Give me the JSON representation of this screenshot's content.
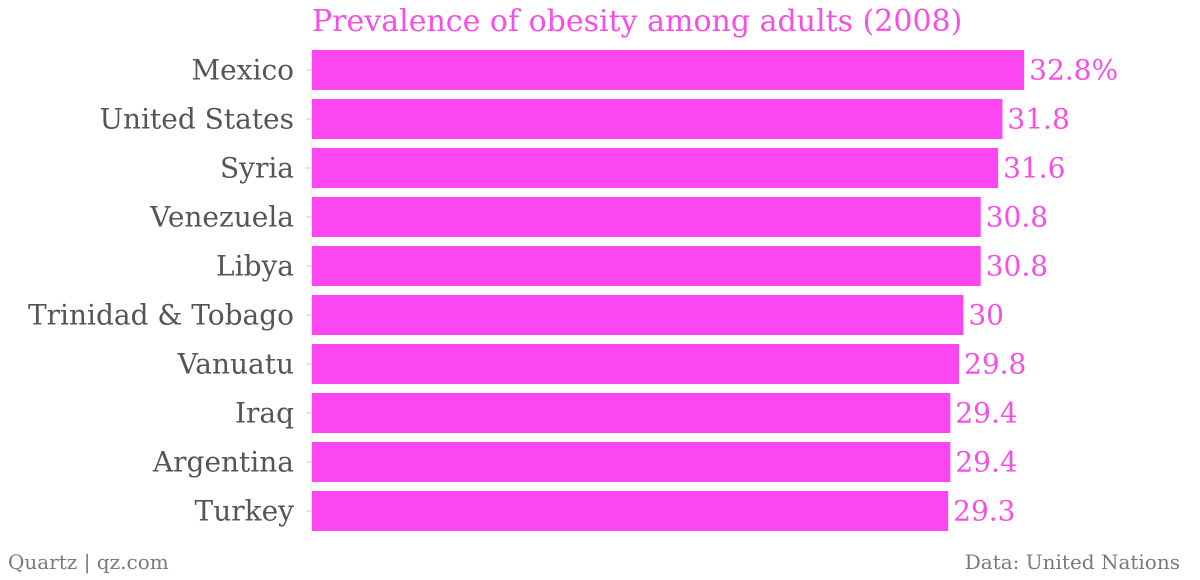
{
  "chart_data": {
    "type": "bar",
    "orientation": "horizontal",
    "title": "Prevalence of obesity among adults (2008)",
    "categories": [
      "Mexico",
      "United States",
      "Syria",
      "Venezuela",
      "Libya",
      "Trinidad & Tobago",
      "Vanuatu",
      "Iraq",
      "Argentina",
      "Turkey"
    ],
    "values": [
      32.8,
      31.8,
      31.6,
      30.8,
      30.8,
      30,
      29.8,
      29.4,
      29.4,
      29.3
    ],
    "value_labels": [
      "32.8%",
      "31.8",
      "31.6",
      "30.8",
      "30.8",
      "30",
      "29.8",
      "29.4",
      "29.4",
      "29.3"
    ],
    "xlim": [
      0,
      33.3
    ],
    "grid": false,
    "legend": "none",
    "colors": {
      "bar": "#fc46f1",
      "value_label": "#f74ee6",
      "category_label": "#555555",
      "tick": "#cccccc"
    }
  },
  "footer": {
    "source_left": "Quartz | qz.com",
    "source_right": "Data: United Nations"
  }
}
